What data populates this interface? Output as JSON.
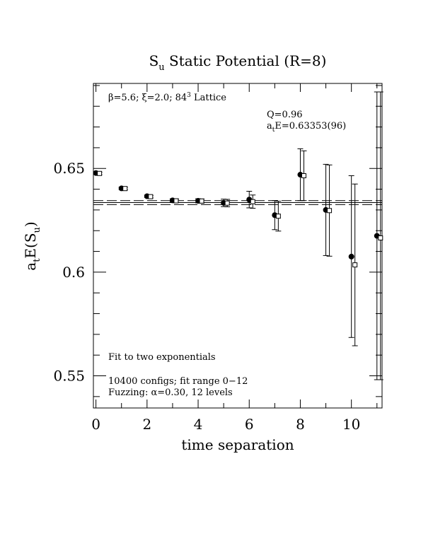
{
  "chart_data": {
    "type": "scatter",
    "title": {
      "main": "S",
      "sub": "u",
      "rest": " Static Potential (R=8)"
    },
    "xlabel": "time separation",
    "ylabel": {
      "a": "a",
      "a_sub": "t",
      "mid": "E(S",
      "s_sub": "u",
      "end": ")"
    },
    "xlim": [
      -0.1,
      11.2
    ],
    "ylim": [
      0.5345,
      0.691
    ],
    "xticks": [
      0,
      2,
      4,
      6,
      8,
      10
    ],
    "xtick_labels": [
      "0",
      "2",
      "4",
      "6",
      "8",
      "10"
    ],
    "yticks": [
      0.55,
      0.6,
      0.65
    ],
    "ytick_labels": [
      "0.55",
      "0.6",
      "0.65"
    ],
    "annotations": {
      "lattice": {
        "beta": "β=5.6;",
        "xi": "ξ=2.0;",
        "lat": "84",
        "lat_sup": "3",
        "lat_end": " Lattice"
      },
      "q": "Q=0.96",
      "fit_energy": {
        "a": "a",
        "sub": "t",
        "rest": "E=0.63353(96)"
      },
      "fit_type": "Fit to two exponentials",
      "configs": "10400 configs; fit range 0−12",
      "fuzzing": "Fuzzing: α=0.30, 12 levels"
    },
    "fit": {
      "value": 0.63353,
      "error": 0.00096
    },
    "series": [
      {
        "marker": "filled-circle",
        "x": [
          0,
          1,
          2,
          3,
          4,
          5,
          6,
          7,
          8,
          9,
          10,
          11
        ],
        "y": [
          0.6478,
          0.6404,
          0.6366,
          0.6346,
          0.6344,
          0.6334,
          0.635,
          0.6275,
          0.647,
          0.63,
          0.6075,
          0.6175
        ],
        "err": [
          0.0006,
          0.0006,
          0.0006,
          0.0008,
          0.001,
          0.0018,
          0.004,
          0.007,
          0.0125,
          0.022,
          0.039,
          0.133
        ]
      },
      {
        "marker": "open-square",
        "x": [
          0,
          1,
          2,
          3,
          4,
          5,
          6,
          7,
          8,
          9,
          10,
          11
        ],
        "y": [
          0.6476,
          0.6403,
          0.6364,
          0.6344,
          0.6343,
          0.6333,
          0.634,
          0.627,
          0.6465,
          0.6297,
          0.6035,
          0.6165
        ],
        "err": [
          0.0006,
          0.0006,
          0.0006,
          0.0008,
          0.001,
          0.0018,
          0.0032,
          0.0072,
          0.012,
          0.022,
          0.039,
          0.133
        ]
      }
    ],
    "grid": false,
    "legend": "none"
  }
}
